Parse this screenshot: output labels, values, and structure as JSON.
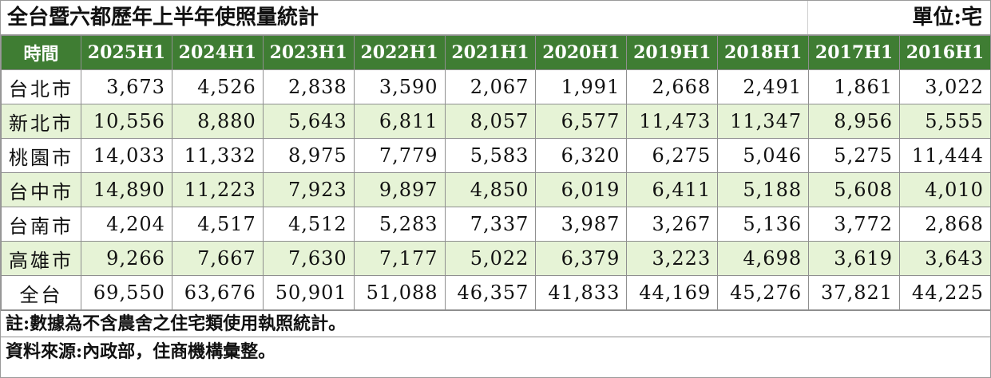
{
  "title": "全台暨六都歷年上半年使照量統計",
  "unit": "單位:宅",
  "table": {
    "headers": [
      "時間",
      "2025H1",
      "2024H1",
      "2023H1",
      "2022H1",
      "2021H1",
      "2020H1",
      "2019H1",
      "2018H1",
      "2017H1",
      "2016H1"
    ],
    "rows": [
      {
        "label": "台北市",
        "values": [
          "3,673",
          "4,526",
          "2,838",
          "3,590",
          "2,067",
          "1,991",
          "2,668",
          "2,491",
          "1,861",
          "3,022"
        ]
      },
      {
        "label": "新北市",
        "values": [
          "10,556",
          "8,880",
          "5,643",
          "6,811",
          "8,057",
          "6,577",
          "11,473",
          "11,347",
          "8,956",
          "5,555"
        ]
      },
      {
        "label": "桃園市",
        "values": [
          "14,033",
          "11,332",
          "8,975",
          "7,779",
          "5,583",
          "6,320",
          "6,275",
          "5,046",
          "5,275",
          "11,444"
        ]
      },
      {
        "label": "台中市",
        "values": [
          "14,890",
          "11,223",
          "7,923",
          "9,897",
          "4,850",
          "6,019",
          "6,411",
          "5,188",
          "5,608",
          "4,010"
        ]
      },
      {
        "label": "台南市",
        "values": [
          "4,204",
          "4,517",
          "4,512",
          "5,283",
          "7,337",
          "3,987",
          "3,267",
          "5,136",
          "3,772",
          "2,868"
        ]
      },
      {
        "label": "高雄市",
        "values": [
          "9,266",
          "7,667",
          "7,630",
          "7,177",
          "5,022",
          "6,379",
          "3,223",
          "4,698",
          "3,619",
          "3,643"
        ]
      },
      {
        "label": "全台",
        "values": [
          "69,550",
          "63,676",
          "50,901",
          "51,088",
          "46,357",
          "41,833",
          "44,169",
          "45,276",
          "37,821",
          "44,225"
        ]
      }
    ]
  },
  "note": "註:數據為不含農舍之住宅類使用執照統計。",
  "source": "資料來源:內政部，住商機構彙整。",
  "colors": {
    "header_bg": "#3f7d33",
    "header_text": "#ffffff",
    "alt_row_bg": "#e6f3d6"
  }
}
